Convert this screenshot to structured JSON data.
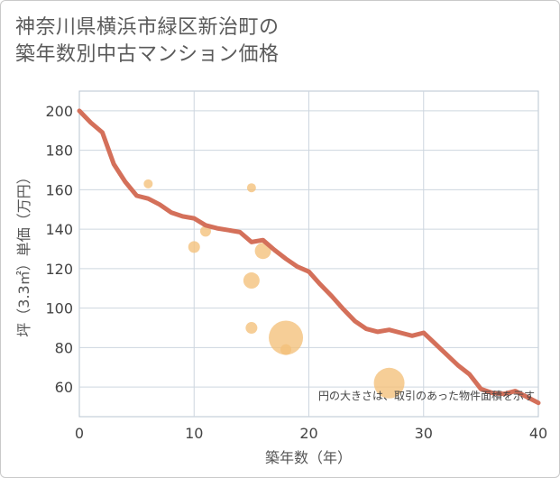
{
  "title": {
    "line1": "神奈川県横浜市緑区新治町の",
    "line2": "築年数別中古マンション価格"
  },
  "chart_data": {
    "type": "line+scatter",
    "xlabel": "築年数（年）",
    "ylabel": "坪（3.3㎡）単価（万円）",
    "xlim": [
      0,
      40
    ],
    "ylim": [
      45,
      210
    ],
    "xticks": [
      0,
      10,
      20,
      30,
      40
    ],
    "yticks": [
      60,
      80,
      100,
      120,
      140,
      160,
      180,
      200
    ],
    "grid": true,
    "note": "円の大きさは、取引のあった物件面積を示す",
    "series": [
      {
        "name": "trend",
        "type": "line",
        "color": "#d4705a",
        "points": [
          [
            0,
            200
          ],
          [
            1,
            194
          ],
          [
            2,
            189
          ],
          [
            3,
            173
          ],
          [
            4,
            164
          ],
          [
            5,
            157
          ],
          [
            6,
            155.5
          ],
          [
            7,
            152.5
          ],
          [
            8,
            148.5
          ],
          [
            9,
            146.5
          ],
          [
            10,
            145.5
          ],
          [
            11,
            142
          ],
          [
            12,
            140.5
          ],
          [
            13,
            139.5
          ],
          [
            14,
            138.5
          ],
          [
            15,
            133.5
          ],
          [
            16,
            134.5
          ],
          [
            17,
            129.5
          ],
          [
            18,
            125
          ],
          [
            19,
            121
          ],
          [
            20,
            118.5
          ],
          [
            21,
            112
          ],
          [
            22,
            106
          ],
          [
            23,
            99.5
          ],
          [
            24,
            93.5
          ],
          [
            25,
            89.5
          ],
          [
            26,
            88
          ],
          [
            27,
            89
          ],
          [
            28,
            87.5
          ],
          [
            29,
            86
          ],
          [
            30,
            87.5
          ],
          [
            31,
            82
          ],
          [
            32,
            76.5
          ],
          [
            33,
            71
          ],
          [
            34,
            66.5
          ],
          [
            35,
            59
          ],
          [
            36,
            57
          ],
          [
            37,
            56.5
          ],
          [
            38,
            58
          ],
          [
            39,
            55
          ],
          [
            40,
            52
          ]
        ]
      },
      {
        "name": "transactions",
        "type": "scatter",
        "color": "#f4c07a",
        "points": [
          {
            "x": 6,
            "y": 163,
            "size": 5
          },
          {
            "x": 10,
            "y": 131,
            "size": 6.5
          },
          {
            "x": 11,
            "y": 139,
            "size": 6
          },
          {
            "x": 15,
            "y": 161,
            "size": 5
          },
          {
            "x": 15,
            "y": 114,
            "size": 9
          },
          {
            "x": 15,
            "y": 90,
            "size": 6.5
          },
          {
            "x": 16,
            "y": 129,
            "size": 9
          },
          {
            "x": 18,
            "y": 85,
            "size": 19
          },
          {
            "x": 18,
            "y": 79,
            "size": 6
          },
          {
            "x": 27,
            "y": 62,
            "size": 17
          }
        ]
      }
    ]
  }
}
